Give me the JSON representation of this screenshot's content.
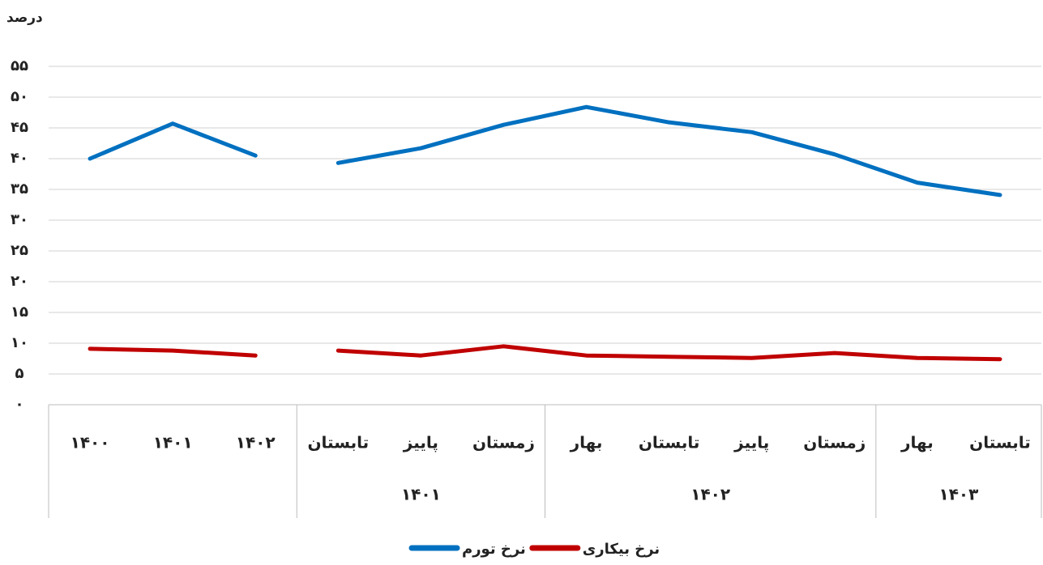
{
  "chart_data": {
    "type": "line",
    "y_label": "درصد",
    "groups": [
      {
        "label": null,
        "categories": [
          "۱۴۰۰",
          "۱۴۰۱",
          "۱۴۰۲"
        ]
      },
      {
        "label": "۱۴۰۱",
        "categories": [
          "تابستان",
          "پاییز",
          "زمستان"
        ]
      },
      {
        "label": "۱۴۰۲",
        "categories": [
          "بهار",
          "تابستان",
          "پاییز",
          "زمستان"
        ]
      },
      {
        "label": "۱۴۰۳",
        "categories": [
          "بهار",
          "تابستان"
        ]
      }
    ],
    "series": [
      {
        "name": "نرخ تورم",
        "color": "#0070c0",
        "values": [
          40,
          45.7,
          40.5,
          39.3,
          41.7,
          45.5,
          48.4,
          45.9,
          44.3,
          40.7,
          36.1,
          34.1
        ]
      },
      {
        "name": "نرخ بیکاری",
        "color": "#c00000",
        "values": [
          9.1,
          8.8,
          8.0,
          8.8,
          8.0,
          9.5,
          8.0,
          7.8,
          7.6,
          8.4,
          7.6,
          7.4
        ]
      }
    ],
    "ylim": [
      0,
      55
    ],
    "yticks": [
      {
        "value": 0,
        "label": "۰"
      },
      {
        "value": 5,
        "label": "۵"
      },
      {
        "value": 10,
        "label": "۱۰"
      },
      {
        "value": 15,
        "label": "۱۵"
      },
      {
        "value": 20,
        "label": "۲۰"
      },
      {
        "value": 25,
        "label": "۲۵"
      },
      {
        "value": 30,
        "label": "۳۰"
      },
      {
        "value": 35,
        "label": "۳۵"
      },
      {
        "value": 40,
        "label": "۴۰"
      },
      {
        "value": 45,
        "label": "۴۵"
      },
      {
        "value": 50,
        "label": "۵۰"
      },
      {
        "value": 55,
        "label": "۵۵"
      }
    ],
    "grid": true
  }
}
